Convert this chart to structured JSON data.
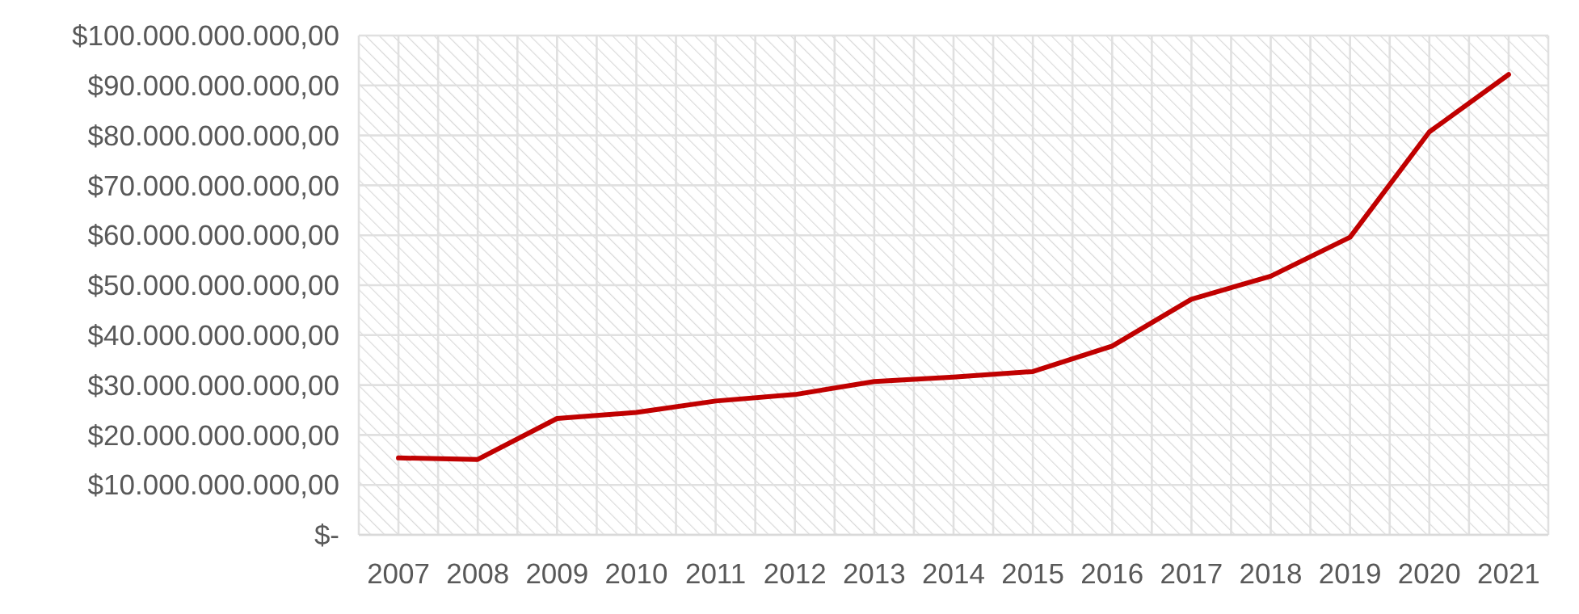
{
  "chart_data": {
    "type": "line",
    "categories": [
      "2007",
      "2008",
      "2009",
      "2010",
      "2011",
      "2012",
      "2013",
      "2014",
      "2015",
      "2016",
      "2017",
      "2018",
      "2019",
      "2020",
      "2021"
    ],
    "series": [
      {
        "color": "#c00000",
        "values": [
          15400000000,
          15100000000,
          23300000000,
          24500000000,
          26800000000,
          28100000000,
          30700000000,
          31600000000,
          32700000000,
          37800000000,
          47200000000,
          51800000000,
          59600000000,
          80700000000,
          92200000000
        ]
      }
    ],
    "ylim": [
      0,
      100000000000
    ],
    "yticks": [
      {
        "value": 0,
        "label": "$-"
      },
      {
        "value": 10000000000,
        "label": "$10.000.000.000,00"
      },
      {
        "value": 20000000000,
        "label": "$20.000.000.000,00"
      },
      {
        "value": 30000000000,
        "label": "$30.000.000.000,00"
      },
      {
        "value": 40000000000,
        "label": "$40.000.000.000,00"
      },
      {
        "value": 50000000000,
        "label": "$50.000.000.000,00"
      },
      {
        "value": 60000000000,
        "label": "$60.000.000.000,00"
      },
      {
        "value": 70000000000,
        "label": "$70.000.000.000,00"
      },
      {
        "value": 80000000000,
        "label": "$80.000.000.000,00"
      },
      {
        "value": 90000000000,
        "label": "$90.000.000.000,00"
      },
      {
        "value": 100000000000,
        "label": "$100.000.000.000,00"
      }
    ],
    "grid": true,
    "marker": "none",
    "line_style": "solid"
  }
}
